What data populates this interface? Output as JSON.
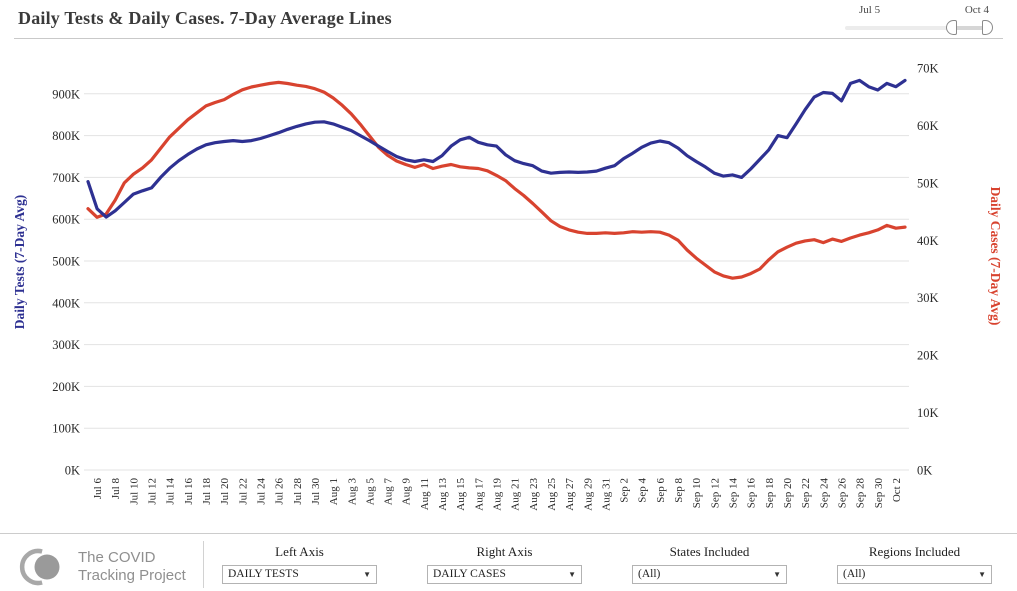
{
  "header": {
    "title": "Daily Tests & Daily Cases. 7-Day Average Lines",
    "range_slider": {
      "start_label": "Jul 5",
      "end_label": "Oct 4"
    }
  },
  "chart_data": {
    "type": "line",
    "title": "Daily Tests & Daily Cases. 7-Day Average Lines",
    "values_unit": "thousands",
    "grid": "horizontal-on",
    "legend_position": "axis-titles",
    "x": [
      "Jul 5",
      "Jul 6",
      "Jul 7",
      "Jul 8",
      "Jul 9",
      "Jul 10",
      "Jul 11",
      "Jul 12",
      "Jul 13",
      "Jul 14",
      "Jul 15",
      "Jul 16",
      "Jul 17",
      "Jul 18",
      "Jul 19",
      "Jul 20",
      "Jul 21",
      "Jul 22",
      "Jul 23",
      "Jul 24",
      "Jul 25",
      "Jul 26",
      "Jul 27",
      "Jul 28",
      "Jul 29",
      "Jul 30",
      "Jul 31",
      "Aug 1",
      "Aug 2",
      "Aug 3",
      "Aug 4",
      "Aug 5",
      "Aug 6",
      "Aug 7",
      "Aug 8",
      "Aug 9",
      "Aug 10",
      "Aug 11",
      "Aug 12",
      "Aug 13",
      "Aug 14",
      "Aug 15",
      "Aug 16",
      "Aug 17",
      "Aug 18",
      "Aug 19",
      "Aug 20",
      "Aug 21",
      "Aug 22",
      "Aug 23",
      "Aug 24",
      "Aug 25",
      "Aug 26",
      "Aug 27",
      "Aug 28",
      "Aug 29",
      "Aug 30",
      "Aug 31",
      "Sep 1",
      "Sep 2",
      "Sep 3",
      "Sep 4",
      "Sep 5",
      "Sep 6",
      "Sep 7",
      "Sep 8",
      "Sep 9",
      "Sep 10",
      "Sep 11",
      "Sep 12",
      "Sep 13",
      "Sep 14",
      "Sep 15",
      "Sep 16",
      "Sep 17",
      "Sep 18",
      "Sep 19",
      "Sep 20",
      "Sep 21",
      "Sep 22",
      "Sep 23",
      "Sep 24",
      "Sep 25",
      "Sep 26",
      "Sep 27",
      "Sep 28",
      "Sep 29",
      "Sep 30",
      "Oct 1",
      "Oct 2",
      "Oct 3"
    ],
    "x_label_every": 2,
    "x_label_start_index": 1,
    "series": [
      {
        "name": "Daily Cases (7-Day Avg)",
        "axis": "right",
        "color": "#d8432f",
        "values": [
          45.5,
          44,
          44.6,
          47,
          50,
          51.5,
          52.6,
          54,
          56,
          58,
          59.5,
          61,
          62.2,
          63.4,
          64,
          64.5,
          65.4,
          66.2,
          66.7,
          67,
          67.3,
          67.5,
          67.3,
          67,
          66.8,
          66.4,
          65.8,
          64.8,
          63.5,
          62,
          60.2,
          58.2,
          56.2,
          54.8,
          53.8,
          53.2,
          52.7,
          53.2,
          52.5,
          52.9,
          53.2,
          52.8,
          52.6,
          52.5,
          52.1,
          51.3,
          50.4,
          49,
          47.8,
          46.4,
          44.9,
          43.4,
          42.4,
          41.8,
          41.4,
          41.2,
          41.2,
          41.3,
          41.2,
          41.3,
          41.5,
          41.4,
          41.5,
          41.4,
          40.9,
          40,
          38.3,
          36.9,
          35.7,
          34.5,
          33.8,
          33.4,
          33.6,
          34.2,
          35,
          36.6,
          38,
          38.8,
          39.5,
          39.9,
          40.1,
          39.6,
          40.2,
          39.8,
          40.4,
          40.9,
          41.3,
          41.8,
          42.6,
          42.1,
          42.3
        ]
      },
      {
        "name": "Daily Tests (7-Day Avg)",
        "axis": "left",
        "color": "#2e3192",
        "values": [
          690,
          625,
          605,
          620,
          640,
          660,
          668,
          675,
          700,
          722,
          740,
          755,
          768,
          778,
          783,
          786,
          788,
          786,
          788,
          793,
          800,
          807,
          815,
          822,
          828,
          832,
          833,
          828,
          820,
          812,
          800,
          788,
          775,
          762,
          750,
          742,
          738,
          742,
          738,
          752,
          775,
          790,
          796,
          784,
          778,
          775,
          754,
          740,
          733,
          728,
          715,
          710,
          712,
          713,
          712,
          713,
          715,
          722,
          728,
          745,
          758,
          772,
          782,
          787,
          783,
          770,
          752,
          738,
          725,
          710,
          703,
          706,
          700,
          720,
          743,
          766,
          800,
          795,
          828,
          862,
          892,
          903,
          901,
          883,
          925,
          932,
          917,
          909,
          925,
          917,
          932
        ]
      }
    ],
    "left_axis": {
      "title": "Daily Tests (7-Day Avg)",
      "color": "#2e3192",
      "range_k": [
        0,
        970
      ],
      "ticks": [
        {
          "label": "0K",
          "value": 0
        },
        {
          "label": "100K",
          "value": 100
        },
        {
          "label": "200K",
          "value": 200
        },
        {
          "label": "300K",
          "value": 300
        },
        {
          "label": "400K",
          "value": 400
        },
        {
          "label": "500K",
          "value": 500
        },
        {
          "label": "600K",
          "value": 600
        },
        {
          "label": "700K",
          "value": 700
        },
        {
          "label": "800K",
          "value": 800
        },
        {
          "label": "900K",
          "value": 900
        }
      ]
    },
    "right_axis": {
      "title": "Daily Cases (7-Day Avg)",
      "color": "#d8432f",
      "range_k": [
        0,
        70
      ],
      "ticks": [
        {
          "label": "0K",
          "value": 0
        },
        {
          "label": "10K",
          "value": 10
        },
        {
          "label": "20K",
          "value": 20
        },
        {
          "label": "30K",
          "value": 30
        },
        {
          "label": "40K",
          "value": 40
        },
        {
          "label": "50K",
          "value": 50
        },
        {
          "label": "60K",
          "value": 60
        },
        {
          "label": "70K",
          "value": 70
        }
      ]
    }
  },
  "footer": {
    "logo_line1": "The COVID",
    "logo_line2": "Tracking Project",
    "controls": [
      {
        "label": "Left Axis",
        "value": "DAILY TESTS"
      },
      {
        "label": "Right Axis",
        "value": "DAILY CASES"
      },
      {
        "label": "States Included",
        "value": "(All)"
      },
      {
        "label": "Regions Included",
        "value": "(All)"
      }
    ]
  },
  "icons": {
    "dropdown_caret": "▼"
  }
}
